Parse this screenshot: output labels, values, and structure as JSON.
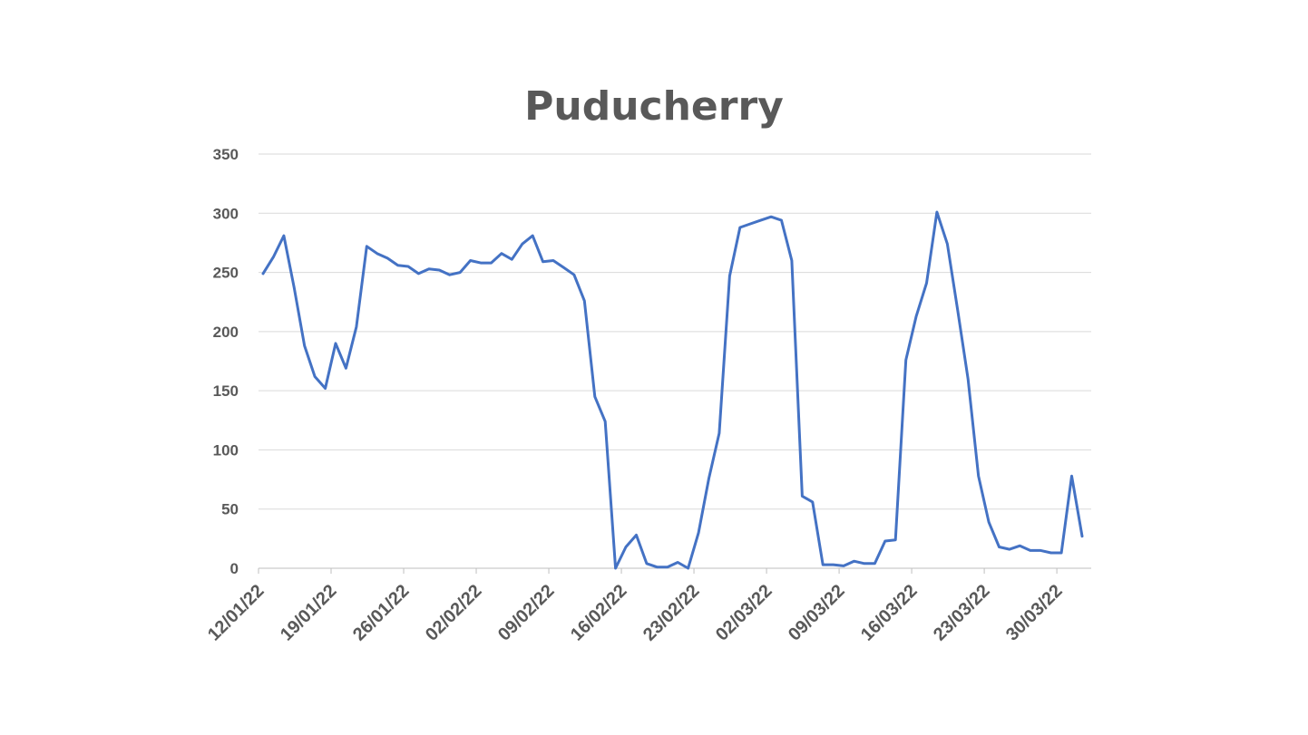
{
  "chart_data": {
    "type": "line",
    "title": "Puducherry",
    "xlabel": "",
    "ylabel": "",
    "ylim": [
      0,
      350
    ],
    "y_ticks": [
      0,
      50,
      100,
      150,
      200,
      250,
      300,
      350
    ],
    "x_ticks": [
      "12/01/22",
      "19/01/22",
      "26/01/22",
      "02/02/22",
      "09/02/22",
      "16/02/22",
      "23/02/22",
      "02/03/22",
      "09/03/22",
      "16/03/22",
      "23/03/22",
      "30/03/22"
    ],
    "grid": true,
    "legend": "none",
    "colors": {
      "series": "#4472c4",
      "grid": "#d9d9d9",
      "text": "#595959"
    },
    "series": [
      {
        "x": [
          "12/01/22",
          "13/01/22",
          "14/01/22",
          "15/01/22",
          "16/01/22",
          "17/01/22",
          "18/01/22",
          "19/01/22",
          "20/01/22",
          "21/01/22",
          "22/01/22",
          "23/01/22",
          "24/01/22",
          "25/01/22",
          "26/01/22",
          "27/01/22",
          "28/01/22",
          "29/01/22",
          "30/01/22",
          "31/01/22",
          "01/02/22",
          "02/02/22",
          "03/02/22",
          "04/02/22",
          "05/02/22",
          "06/02/22",
          "07/02/22",
          "08/02/22",
          "09/02/22",
          "10/02/22",
          "11/02/22",
          "12/02/22",
          "13/02/22",
          "14/02/22",
          "15/02/22",
          "16/02/22",
          "17/02/22",
          "18/02/22",
          "19/02/22",
          "20/02/22",
          "21/02/22",
          "22/02/22",
          "23/02/22",
          "24/02/22",
          "25/02/22",
          "26/02/22",
          "27/02/22",
          "28/02/22",
          "01/03/22",
          "02/03/22",
          "03/03/22",
          "04/03/22",
          "05/03/22",
          "06/03/22",
          "07/03/22",
          "08/03/22",
          "09/03/22",
          "10/03/22",
          "11/03/22",
          "12/03/22",
          "13/03/22",
          "14/03/22",
          "15/03/22",
          "16/03/22",
          "17/03/22",
          "18/03/22",
          "19/03/22",
          "20/03/22",
          "21/03/22",
          "22/03/22",
          "23/03/22",
          "24/03/22",
          "25/03/22",
          "26/03/22",
          "27/03/22",
          "28/03/22",
          "29/03/22",
          "30/03/22",
          "31/03/22",
          "01/04/22"
        ],
        "values": [
          249,
          263,
          281,
          237,
          188,
          162,
          152,
          190,
          169,
          204,
          272,
          266,
          262,
          256,
          255,
          249,
          253,
          252,
          248,
          250,
          260,
          258,
          258,
          266,
          261,
          274,
          281,
          259,
          260,
          254,
          248,
          226,
          145,
          124,
          0,
          18,
          28,
          4,
          1,
          1,
          5,
          0,
          30,
          76,
          114,
          247,
          288,
          291,
          294,
          297,
          294,
          260,
          61,
          56,
          3,
          3,
          2,
          6,
          4,
          4,
          23,
          24,
          176,
          213,
          241,
          301,
          274,
          218,
          160,
          78,
          39,
          18,
          16,
          19,
          15,
          15,
          13,
          13,
          78,
          27
        ]
      }
    ]
  }
}
